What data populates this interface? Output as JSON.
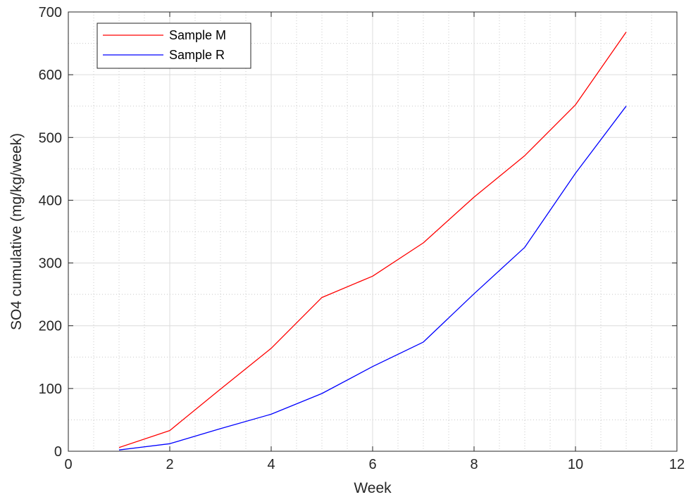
{
  "chart_data": {
    "type": "line",
    "xlabel": "Week",
    "ylabel": "SO4 cumulative (mg/kg/week)",
    "xlim": [
      0,
      12
    ],
    "ylim": [
      0,
      700
    ],
    "xticks": [
      0,
      2,
      4,
      6,
      8,
      10,
      12
    ],
    "yticks": [
      0,
      100,
      200,
      300,
      400,
      500,
      600,
      700
    ],
    "grid": true,
    "minor_grid": true,
    "legend_position": "top-left",
    "series": [
      {
        "name": "Sample M",
        "color": "#ff0000",
        "x": [
          1,
          2,
          3,
          4,
          5,
          6,
          7,
          8,
          9,
          10,
          11
        ],
        "y": [
          6,
          33,
          99,
          164,
          245,
          279,
          332,
          405,
          471,
          552,
          668
        ]
      },
      {
        "name": "Sample R",
        "color": "#0000ff",
        "x": [
          1,
          2,
          3,
          4,
          5,
          6,
          7,
          8,
          9,
          10,
          11
        ],
        "y": [
          2,
          12,
          36,
          59,
          92,
          135,
          174,
          251,
          325,
          443,
          550
        ]
      }
    ]
  }
}
